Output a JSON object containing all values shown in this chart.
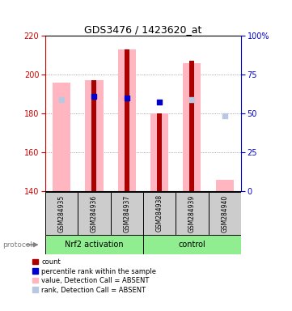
{
  "title": "GDS3476 / 1423620_at",
  "samples": [
    "GSM284935",
    "GSM284936",
    "GSM284937",
    "GSM284938",
    "GSM284939",
    "GSM284940"
  ],
  "ylim": [
    140,
    220
  ],
  "yticks": [
    140,
    160,
    180,
    200,
    220
  ],
  "right_yticks": [
    0,
    25,
    50,
    75,
    100
  ],
  "count_bars": {
    "bottoms": [
      140,
      140,
      140,
      140,
      140,
      140
    ],
    "heights": [
      0,
      57,
      73,
      40,
      67,
      0
    ],
    "color": "#AA0000"
  },
  "absent_value_bars": {
    "tops": [
      196,
      197,
      213,
      180,
      206,
      146
    ],
    "color": "#FFB6C1"
  },
  "absent_rank_markers": {
    "x": [
      0,
      4,
      5
    ],
    "y": [
      187,
      187,
      179
    ],
    "color": "#B8C8E0",
    "size": 25
  },
  "present_rank_markers": {
    "x": [
      1,
      2,
      3
    ],
    "y": [
      189,
      188,
      186
    ],
    "color": "#0000CC",
    "size": 25
  },
  "background_color": "#FFFFFF",
  "plot_bg_color": "#FFFFFF",
  "grid_color": "#888888",
  "left_axis_color": "#CC0000",
  "right_axis_color": "#0000CC",
  "sample_box_color": "#CCCCCC",
  "group1_label": "Nrf2 activation",
  "group2_label": "control",
  "group_box_color": "#90EE90",
  "legend_items": [
    {
      "label": "count",
      "color": "#AA0000"
    },
    {
      "label": "percentile rank within the sample",
      "color": "#0000CC"
    },
    {
      "label": "value, Detection Call = ABSENT",
      "color": "#FFB6C1"
    },
    {
      "label": "rank, Detection Call = ABSENT",
      "color": "#B8C8E0"
    }
  ]
}
